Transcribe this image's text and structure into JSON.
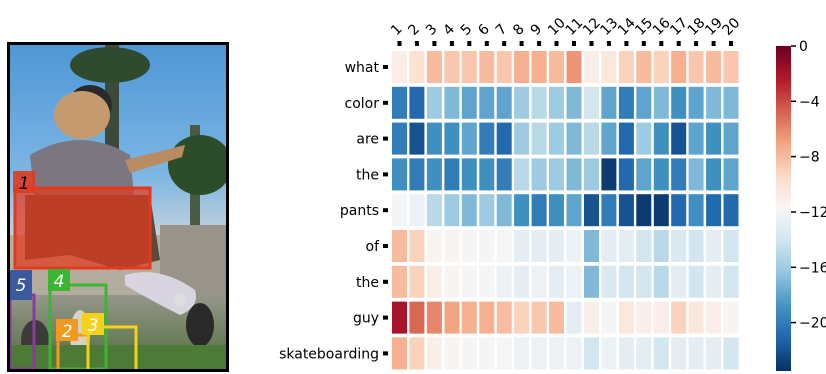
{
  "photo": {
    "boxes": [
      {
        "id": "1",
        "color": "#e23a1e"
      },
      {
        "id": "2",
        "color": "#f39a1e"
      },
      {
        "id": "3",
        "color": "#f5d21a"
      },
      {
        "id": "4",
        "color": "#3cb531"
      },
      {
        "id": "5",
        "color": "#3a5aa0"
      }
    ]
  },
  "chart_data": {
    "type": "heatmap",
    "columns": [
      "1",
      "2",
      "3",
      "4",
      "5",
      "6",
      "7",
      "8",
      "9",
      "10",
      "11",
      "12",
      "13",
      "14",
      "15",
      "16",
      "17",
      "18",
      "19",
      "20"
    ],
    "rows": [
      "what",
      "color",
      "are",
      "the",
      "pants",
      "of",
      "the",
      "guy",
      "skateboarding"
    ],
    "values": [
      [
        -11,
        -10,
        -8,
        -8.5,
        -8.5,
        -8,
        -8.5,
        -7.5,
        -7.5,
        -8,
        -6.5,
        -11,
        -10.5,
        -9,
        -8,
        -9,
        -7.5,
        -8.5,
        -8,
        -8.5
      ],
      [
        -20,
        -21,
        -16,
        -17,
        -18,
        -18,
        -18,
        -16,
        -15,
        -16,
        -17,
        -14,
        -18,
        -20,
        -18,
        -17,
        -19,
        -18,
        -17,
        -17
      ],
      [
        -20,
        -22,
        -19,
        -19,
        -18,
        -20,
        -21,
        -16,
        -15,
        -16,
        -17,
        -15,
        -18,
        -21,
        -16,
        -19,
        -22,
        -18,
        -19,
        -18
      ],
      [
        -19,
        -20,
        -19,
        -20,
        -19,
        -19,
        -20,
        -15,
        -16,
        -16,
        -17,
        -16,
        -23,
        -21,
        -18,
        -19,
        -20,
        -17,
        -19,
        -18
      ],
      [
        -12,
        -12.5,
        -15,
        -16,
        -17,
        -16,
        -17,
        -19,
        -20,
        -19,
        -18,
        -22,
        -20,
        -22,
        -23,
        -23,
        -21,
        -19,
        -21,
        -21
      ],
      [
        -8,
        -9,
        -11.5,
        -11.5,
        -12,
        -12,
        -12,
        -13,
        -13,
        -13,
        -12.5,
        -17,
        -13,
        -13,
        -14,
        -15,
        -13.5,
        -14,
        -13,
        -14
      ],
      [
        -8,
        -9,
        -11,
        -11.5,
        -12,
        -12,
        -12.5,
        -13,
        -12.5,
        -13,
        -12.5,
        -17,
        -13.5,
        -14,
        -14,
        -15,
        -13,
        -14,
        -13,
        -14
      ],
      [
        -2,
        -5,
        -6,
        -7,
        -7.5,
        -7.5,
        -8,
        -9,
        -8.5,
        -8,
        -13,
        -11,
        -12,
        -10.5,
        -11,
        -11,
        -9,
        -10.5,
        -11,
        -11.5
      ],
      [
        -7.5,
        -9,
        -11,
        -11.5,
        -12,
        -12,
        -12,
        -12.5,
        -12.5,
        -12.5,
        -12.5,
        -14,
        -12.5,
        -13,
        -13,
        -14,
        -13,
        -13,
        -13,
        -14
      ]
    ],
    "colorbar": {
      "min": -23.5,
      "max": 0,
      "ticks": [
        "0",
        "−4",
        "−8",
        "−12",
        "−16",
        "−20"
      ],
      "tick_values": [
        0,
        -4,
        -8,
        -12,
        -16,
        -20
      ]
    },
    "colormap": "RdBu_r"
  }
}
